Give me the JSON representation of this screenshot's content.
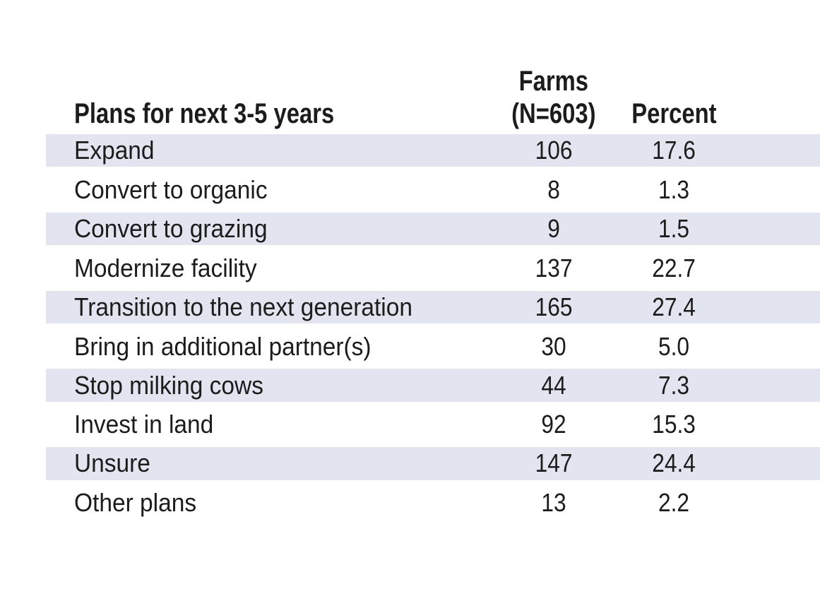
{
  "table": {
    "header": {
      "plans_label": "Plans for next 3-5 years",
      "farms_line1": "Farms",
      "farms_line2": "(N=603)",
      "percent_label": "Percent"
    },
    "rows": [
      {
        "label": "Expand",
        "farms": "106",
        "percent": "17.6"
      },
      {
        "label": "Convert to organic",
        "farms": "8",
        "percent": "1.3"
      },
      {
        "label": "Convert to grazing",
        "farms": "9",
        "percent": "1.5"
      },
      {
        "label": "Modernize facility",
        "farms": "137",
        "percent": "22.7"
      },
      {
        "label": "Transition to the next generation",
        "farms": "165",
        "percent": "27.4"
      },
      {
        "label": "Bring in additional partner(s)",
        "farms": "30",
        "percent": "5.0"
      },
      {
        "label": "Stop milking cows",
        "farms": "44",
        "percent": "7.3"
      },
      {
        "label": "Invest in land",
        "farms": "92",
        "percent": "15.3"
      },
      {
        "label": "Unsure",
        "farms": "147",
        "percent": "24.4"
      },
      {
        "label": "Other plans",
        "farms": "13",
        "percent": "2.2"
      }
    ],
    "colors": {
      "row_band": "#e2e5f0",
      "text": "#1c1c1c",
      "background": "#ffffff"
    }
  }
}
